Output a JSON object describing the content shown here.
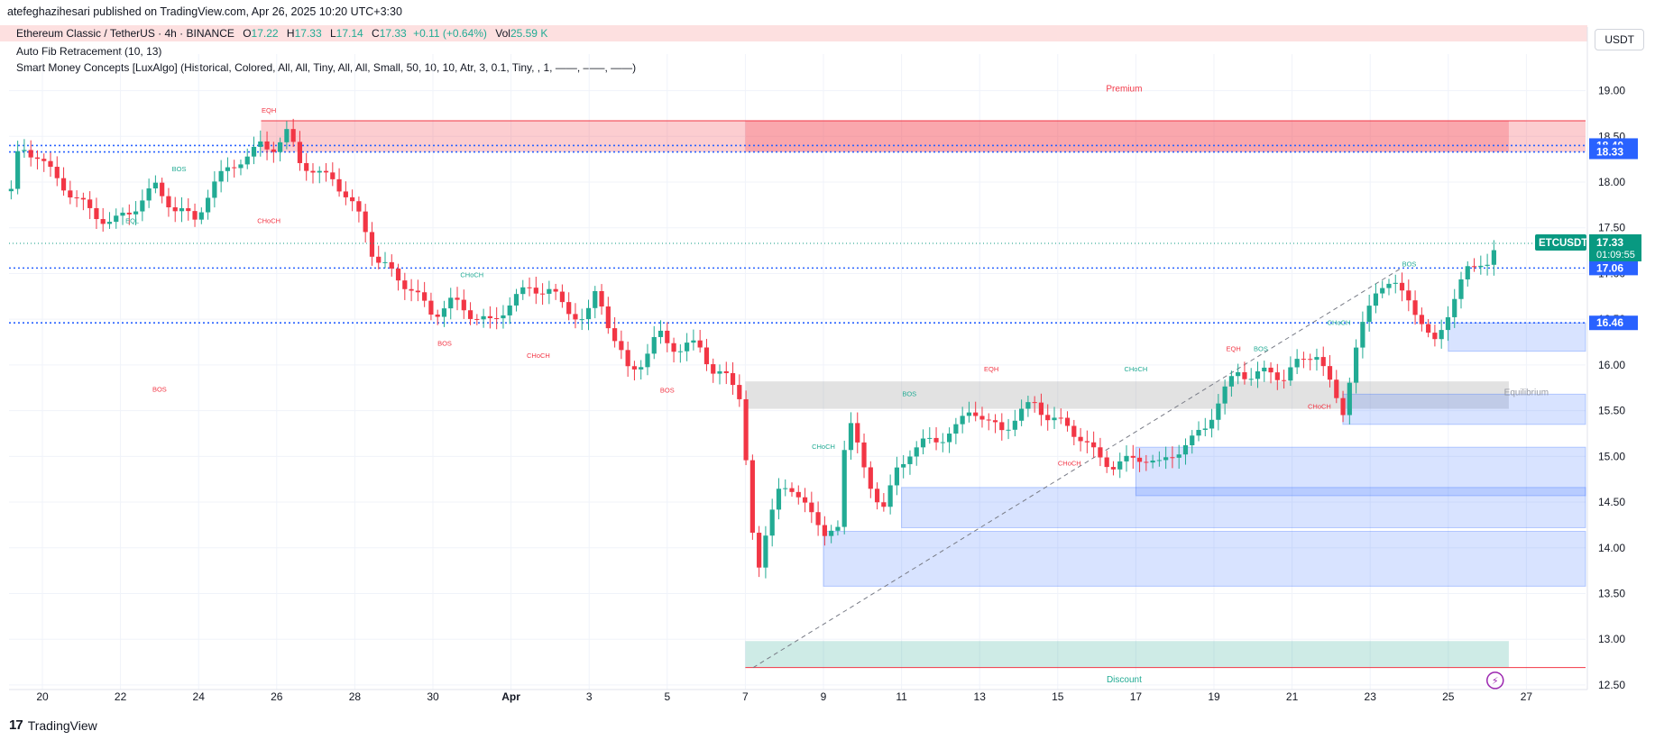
{
  "header": {
    "publisher": "atefeghazihesari published on TradingView.com, Apr 26, 2025 10:20 UTC+3:30"
  },
  "legend": {
    "symbol": "Ethereum Classic / TetherUS · 4h · BINANCE",
    "open_key": "O",
    "open": "17.22",
    "high_key": "H",
    "high": "17.33",
    "low_key": "L",
    "low": "17.14",
    "close_key": "C",
    "close": "17.33",
    "change": "+0.11 (+0.64%)",
    "vol_key": "Vol",
    "vol": "25.59 K",
    "indicator_fib": "Auto Fib Retracement (10, 13)",
    "indicator_smc": "Smart Money Concepts [LuxAlgo] (Historical, Colored, All, All, Tiny, All, All, Small, 50, 10, 10, Atr, 3, 0.1, Tiny, , 1, ——, ——, ——)"
  },
  "currency": "USDT",
  "brand": "TradingView",
  "colors": {
    "up": "#22ab94",
    "down": "#f23645",
    "premium": "#f23645",
    "discount": "#089981",
    "equilibrium": "#9e9e9e",
    "fvg": "#2962ff",
    "fib": "#2962ff",
    "price_tag": "#089981"
  },
  "chart_data": {
    "type": "candlestick",
    "symbol": "ETCUSDT",
    "timeframe": "4h",
    "ylim": [
      12.45,
      19.4
    ],
    "y_ticks": [
      "19.00",
      "18.50",
      "18.00",
      "17.50",
      "17.00",
      "16.50",
      "16.00",
      "15.50",
      "15.00",
      "14.50",
      "14.00",
      "13.50",
      "13.00",
      "12.50"
    ],
    "x_ticks": [
      {
        "label": "20",
        "day": 0
      },
      {
        "label": "22",
        "day": 2
      },
      {
        "label": "24",
        "day": 4
      },
      {
        "label": "26",
        "day": 6
      },
      {
        "label": "28",
        "day": 8
      },
      {
        "label": "30",
        "day": 10
      },
      {
        "label": "Apr",
        "day": 12
      },
      {
        "label": "3",
        "day": 14
      },
      {
        "label": "5",
        "day": 16
      },
      {
        "label": "7",
        "day": 18
      },
      {
        "label": "9",
        "day": 20
      },
      {
        "label": "11",
        "day": 22
      },
      {
        "label": "13",
        "day": 24
      },
      {
        "label": "15",
        "day": 26
      },
      {
        "label": "17",
        "day": 28
      },
      {
        "label": "19",
        "day": 30
      },
      {
        "label": "21",
        "day": 32
      },
      {
        "label": "23",
        "day": 34
      },
      {
        "label": "25",
        "day": 36
      },
      {
        "label": "27",
        "day": 38
      }
    ],
    "price_path": [
      [
        -0.8,
        17.9
      ],
      [
        -0.6,
        18.35
      ],
      [
        -0.1,
        18.3
      ],
      [
        0.3,
        18.05
      ],
      [
        0.8,
        17.85
      ],
      [
        1.3,
        17.65
      ],
      [
        1.8,
        17.55
      ],
      [
        2.3,
        17.7
      ],
      [
        2.9,
        17.95
      ],
      [
        3.4,
        17.7
      ],
      [
        3.9,
        17.6
      ],
      [
        4.3,
        17.9
      ],
      [
        4.8,
        18.2
      ],
      [
        5.3,
        18.25
      ],
      [
        5.6,
        18.45
      ],
      [
        6.0,
        18.35
      ],
      [
        6.3,
        18.55
      ],
      [
        6.6,
        18.25
      ],
      [
        7.0,
        18.05
      ],
      [
        7.4,
        18.1
      ],
      [
        7.8,
        17.8
      ],
      [
        8.2,
        17.6
      ],
      [
        8.5,
        17.15
      ],
      [
        9.0,
        17.0
      ],
      [
        9.5,
        16.8
      ],
      [
        10.0,
        16.55
      ],
      [
        10.5,
        16.7
      ],
      [
        11.0,
        16.55
      ],
      [
        11.5,
        16.45
      ],
      [
        12.0,
        16.7
      ],
      [
        12.5,
        16.85
      ],
      [
        13.0,
        16.8
      ],
      [
        13.5,
        16.6
      ],
      [
        13.9,
        16.45
      ],
      [
        14.2,
        16.85
      ],
      [
        14.6,
        16.3
      ],
      [
        15.0,
        15.95
      ],
      [
        15.4,
        16.05
      ],
      [
        15.8,
        16.35
      ],
      [
        16.3,
        16.15
      ],
      [
        16.8,
        16.25
      ],
      [
        17.2,
        15.9
      ],
      [
        17.6,
        15.85
      ],
      [
        17.9,
        15.65
      ],
      [
        18.1,
        14.5
      ],
      [
        18.3,
        13.6
      ],
      [
        18.5,
        14.1
      ],
      [
        18.8,
        14.7
      ],
      [
        19.2,
        14.55
      ],
      [
        19.6,
        14.55
      ],
      [
        20.0,
        14.05
      ],
      [
        20.4,
        14.3
      ],
      [
        20.6,
        15.5
      ],
      [
        21.0,
        14.9
      ],
      [
        21.3,
        14.6
      ],
      [
        21.6,
        14.4
      ],
      [
        21.8,
        14.8
      ],
      [
        22.2,
        15.05
      ],
      [
        22.6,
        15.15
      ],
      [
        23.0,
        15.2
      ],
      [
        23.4,
        15.3
      ],
      [
        23.8,
        15.55
      ],
      [
        24.2,
        15.35
      ],
      [
        24.6,
        15.3
      ],
      [
        25.0,
        15.45
      ],
      [
        25.4,
        15.6
      ],
      [
        25.8,
        15.4
      ],
      [
        26.2,
        15.35
      ],
      [
        26.6,
        15.2
      ],
      [
        27.0,
        15.0
      ],
      [
        27.4,
        14.9
      ],
      [
        27.8,
        14.95
      ],
      [
        28.2,
        15.0
      ],
      [
        28.6,
        14.9
      ],
      [
        29.0,
        15.05
      ],
      [
        29.4,
        15.15
      ],
      [
        29.8,
        15.35
      ],
      [
        30.2,
        15.65
      ],
      [
        30.6,
        15.95
      ],
      [
        31.0,
        15.85
      ],
      [
        31.4,
        15.95
      ],
      [
        31.8,
        15.85
      ],
      [
        32.2,
        16.05
      ],
      [
        32.6,
        16.15
      ],
      [
        33.0,
        15.75
      ],
      [
        33.3,
        15.5
      ],
      [
        33.6,
        16.1
      ],
      [
        33.9,
        16.55
      ],
      [
        34.2,
        16.9
      ],
      [
        34.6,
        16.85
      ],
      [
        35.0,
        16.75
      ],
      [
        35.3,
        16.45
      ],
      [
        35.6,
        16.2
      ],
      [
        35.9,
        16.5
      ],
      [
        36.2,
        16.75
      ],
      [
        36.5,
        17.05
      ],
      [
        36.8,
        17.15
      ],
      [
        37.0,
        17.1
      ],
      [
        37.2,
        17.22
      ],
      [
        37.3,
        17.33
      ]
    ],
    "fib_levels": [
      18.4,
      18.33,
      17.06,
      16.46
    ],
    "zones": [
      {
        "name": "Premium",
        "top": 18.67,
        "bottom": 18.33,
        "color": "premium"
      },
      {
        "name": "Equilibrium",
        "top": 15.82,
        "bottom": 15.52,
        "color": "equilibrium"
      },
      {
        "name": "Discount",
        "top": 12.98,
        "bottom": 12.69,
        "color": "discount"
      }
    ],
    "order_blocks": [
      {
        "x0": 36.0,
        "top": 16.46,
        "bottom": 16.15
      },
      {
        "x0": 33.3,
        "top": 15.68,
        "bottom": 15.35
      },
      {
        "x0": 28.0,
        "top": 15.1,
        "bottom": 14.57
      },
      {
        "x0": 22.0,
        "top": 14.66,
        "bottom": 14.22
      },
      {
        "x0": 20.0,
        "top": 14.18,
        "bottom": 13.58
      }
    ],
    "structure_labels": [
      {
        "text": "EQH",
        "day": 5.8,
        "price": 18.76,
        "side": "down"
      },
      {
        "text": "Premium",
        "day": 27.7,
        "price": 18.99,
        "side": "down"
      },
      {
        "text": "BOS",
        "day": 3.5,
        "price": 18.12,
        "side": "up"
      },
      {
        "text": "EQL",
        "day": 2.3,
        "price": 17.55,
        "side": "up"
      },
      {
        "text": "CHoCH",
        "day": 5.8,
        "price": 17.55,
        "side": "down"
      },
      {
        "text": "CHoCH",
        "day": 11.0,
        "price": 16.96,
        "side": "up"
      },
      {
        "text": "BOS",
        "day": 10.3,
        "price": 16.21,
        "side": "down"
      },
      {
        "text": "CHoCH",
        "day": 12.7,
        "price": 16.08,
        "side": "down"
      },
      {
        "text": "BOS",
        "day": 3.0,
        "price": 15.71,
        "side": "down"
      },
      {
        "text": "BOS",
        "day": 16.0,
        "price": 15.7,
        "side": "down"
      },
      {
        "text": "EQH",
        "day": 24.3,
        "price": 15.93,
        "side": "down"
      },
      {
        "text": "CHoCH",
        "day": 28.0,
        "price": 15.93,
        "side": "up"
      },
      {
        "text": "BOS",
        "day": 22.2,
        "price": 15.66,
        "side": "up"
      },
      {
        "text": "CHoCH",
        "day": 20.0,
        "price": 15.08,
        "side": "up"
      },
      {
        "text": "CHoCH",
        "day": 26.3,
        "price": 14.9,
        "side": "down"
      },
      {
        "text": "EQH",
        "day": 30.5,
        "price": 16.15,
        "side": "down"
      },
      {
        "text": "BOS",
        "day": 31.2,
        "price": 16.15,
        "side": "up"
      },
      {
        "text": "CHoCH",
        "day": 32.7,
        "price": 15.52,
        "side": "down"
      },
      {
        "text": "CHoCH",
        "day": 33.2,
        "price": 16.44,
        "side": "up"
      },
      {
        "text": "BOS",
        "day": 35.0,
        "price": 17.08,
        "side": "up"
      },
      {
        "text": "Equilibrium",
        "day": 38.0,
        "price": 15.67,
        "side": "neutral"
      },
      {
        "text": "Discount",
        "day": 27.7,
        "price": 12.53,
        "side": "up"
      }
    ],
    "last_price": {
      "symbol": "ETCUSDT",
      "price": "17.33",
      "countdown": "01:09:55",
      "value": 17.33
    },
    "price_tags": [
      {
        "text": "18.40",
        "value": 18.4
      },
      {
        "text": "18.33",
        "value": 18.33
      },
      {
        "text": "17.06",
        "value": 17.06
      },
      {
        "text": "16.46",
        "value": 16.46
      }
    ]
  }
}
